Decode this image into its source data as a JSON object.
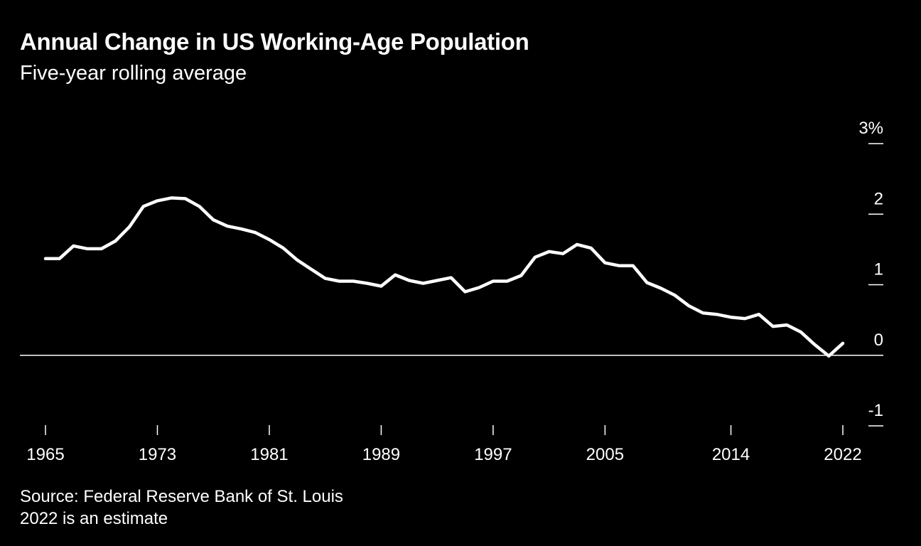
{
  "chart_data": {
    "type": "line",
    "title": "Annual Change in US Working-Age Population",
    "subtitle": "Five-year rolling average",
    "xlabel": "",
    "ylabel": "",
    "xlim": [
      1965,
      2022
    ],
    "ylim": [
      -1,
      3
    ],
    "y_ticks": [
      {
        "value": 3,
        "label": "3%"
      },
      {
        "value": 2,
        "label": "2"
      },
      {
        "value": 1,
        "label": "1"
      },
      {
        "value": 0,
        "label": "0"
      },
      {
        "value": -1,
        "label": "-1"
      }
    ],
    "x_ticks": [
      {
        "value": 1965,
        "label": "1965"
      },
      {
        "value": 1973,
        "label": "1973"
      },
      {
        "value": 1981,
        "label": "1981"
      },
      {
        "value": 1989,
        "label": "1989"
      },
      {
        "value": 1997,
        "label": "1997"
      },
      {
        "value": 2005,
        "label": "2005"
      },
      {
        "value": 2014,
        "label": "2014"
      },
      {
        "value": 2022,
        "label": "2022"
      }
    ],
    "series": [
      {
        "name": "Annual change in US working-age population (5-yr rolling avg)",
        "color": "#ffffff",
        "x": [
          1965,
          1966,
          1967,
          1968,
          1969,
          1970,
          1971,
          1972,
          1973,
          1974,
          1975,
          1976,
          1977,
          1978,
          1979,
          1980,
          1981,
          1982,
          1983,
          1984,
          1985,
          1986,
          1987,
          1988,
          1989,
          1990,
          1991,
          1992,
          1993,
          1994,
          1995,
          1996,
          1997,
          1998,
          1999,
          2000,
          2001,
          2002,
          2003,
          2004,
          2005,
          2006,
          2007,
          2008,
          2009,
          2010,
          2011,
          2012,
          2013,
          2014,
          2015,
          2016,
          2017,
          2018,
          2019,
          2020,
          2021,
          2022
        ],
        "values": [
          1.37,
          1.37,
          1.55,
          1.51,
          1.51,
          1.62,
          1.82,
          2.11,
          2.19,
          2.23,
          2.22,
          2.11,
          1.92,
          1.83,
          1.79,
          1.74,
          1.64,
          1.52,
          1.35,
          1.22,
          1.09,
          1.05,
          1.05,
          1.02,
          0.98,
          1.14,
          1.06,
          1.02,
          1.06,
          1.1,
          0.9,
          0.96,
          1.05,
          1.05,
          1.13,
          1.39,
          1.47,
          1.44,
          1.57,
          1.52,
          1.31,
          1.27,
          1.27,
          1.03,
          0.95,
          0.85,
          0.7,
          0.6,
          0.58,
          0.54,
          0.52,
          0.58,
          0.41,
          0.43,
          0.33,
          0.15,
          -0.01,
          0.17
        ]
      }
    ],
    "zero_line": true
  },
  "footer": {
    "source": "Source: Federal Reserve Bank of St. Louis",
    "note": "2022 is an estimate"
  }
}
